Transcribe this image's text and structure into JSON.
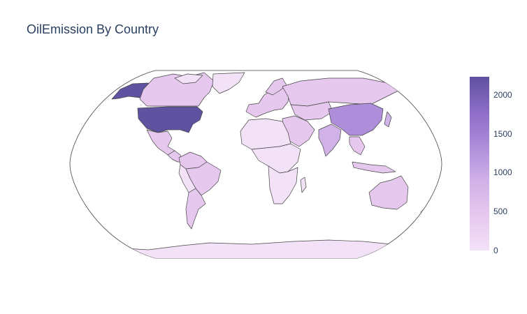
{
  "title": "OilEmission By Country",
  "colorbar": {
    "ticks": [
      "0",
      "500",
      "1000",
      "1500",
      "2000"
    ],
    "tick_values": [
      0,
      500,
      1000,
      1500,
      2000
    ],
    "max_value": 2230,
    "colors": [
      "#f3e1f7",
      "#e6c8ef",
      "#d0b1e8",
      "#ae8ddb",
      "#8c6cc6",
      "#5f52a0"
    ]
  },
  "chart_data": {
    "type": "choropleth",
    "projection": "robinson",
    "colorscale": [
      "#f3e1f7",
      "#e6c8ef",
      "#d0b1e8",
      "#ae8ddb",
      "#8c6cc6",
      "#5f52a0"
    ],
    "zmin": 0,
    "zmax": 2230,
    "regions": [
      {
        "region": "United States",
        "value": 2230
      },
      {
        "region": "Alaska",
        "value": 2230
      },
      {
        "region": "China",
        "value": 1200
      },
      {
        "region": "India",
        "value": 500
      },
      {
        "region": "Russia",
        "value": 350
      },
      {
        "region": "Canada",
        "value": 250
      },
      {
        "region": "Japan",
        "value": 450
      },
      {
        "region": "Brazil",
        "value": 220
      },
      {
        "region": "Mexico",
        "value": 300
      },
      {
        "region": "Saudi Arabia",
        "value": 250
      },
      {
        "region": "Australia",
        "value": 150
      },
      {
        "region": "Europe",
        "value": 180
      },
      {
        "region": "Africa",
        "value": 60
      },
      {
        "region": "Antarctica",
        "value": 0
      }
    ]
  }
}
